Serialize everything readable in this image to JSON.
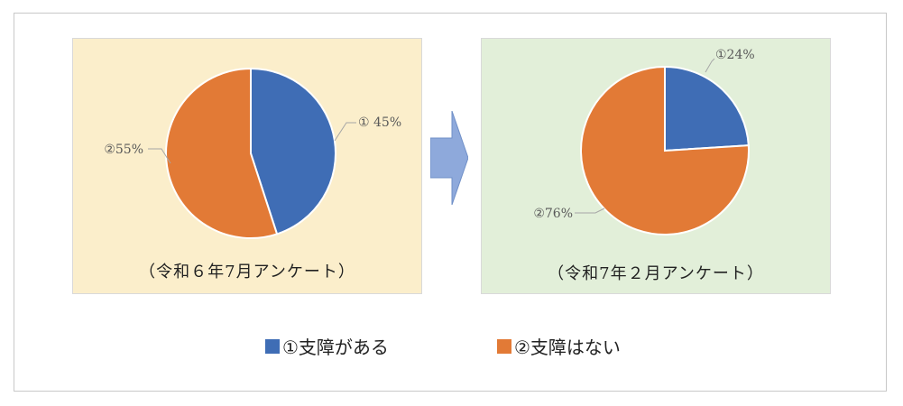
{
  "colors": {
    "panel1_bg": "#fbeecb",
    "panel2_bg": "#e2efd9",
    "series_1": "#3f6db5",
    "series_2": "#e27a36",
    "arrow": "#8ea9db"
  },
  "legend": {
    "item1": "①支障がある",
    "item2": "②支障はない"
  },
  "chart_data": [
    {
      "type": "pie",
      "caption": "（令和６年7月アンケート）",
      "categories": [
        "①支障がある",
        "②支障はない"
      ],
      "values": [
        45,
        55
      ],
      "data_labels": [
        "① 45%",
        "②55%"
      ],
      "legend_position": "bottom"
    },
    {
      "type": "pie",
      "caption": "（令和7年２月アンケート）",
      "categories": [
        "①支障がある",
        "②支障はない"
      ],
      "values": [
        24,
        76
      ],
      "data_labels": [
        "①24%",
        "②76%"
      ],
      "legend_position": "bottom"
    }
  ]
}
